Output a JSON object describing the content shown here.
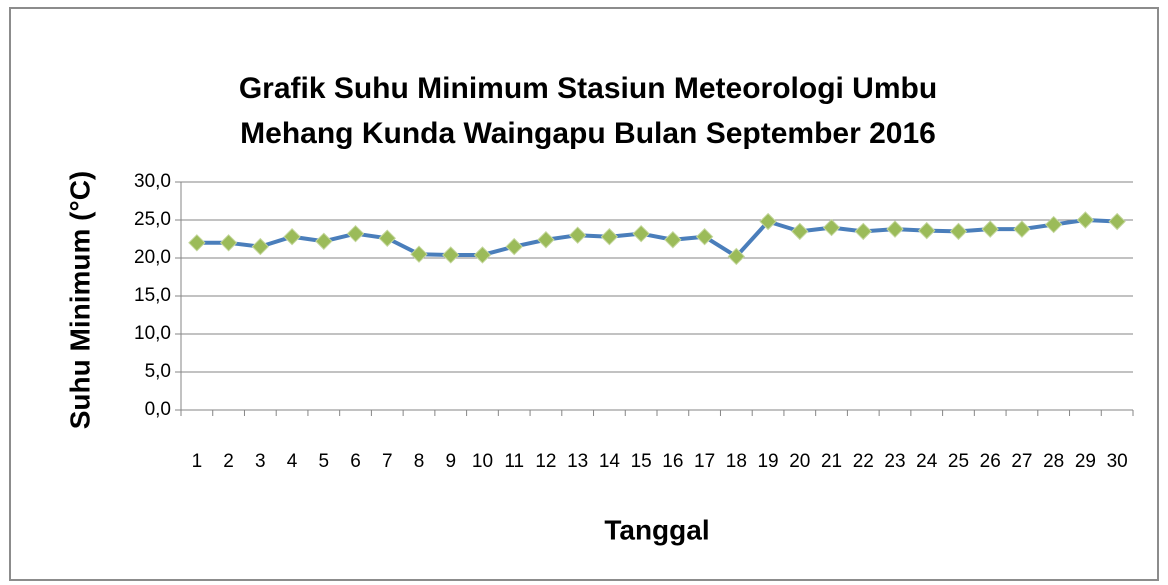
{
  "chart_data": {
    "type": "line",
    "title": [
      "Grafik Suhu Minimum Stasiun Meteorologi Umbu",
      "Mehang Kunda Waingapu Bulan September 2016"
    ],
    "x_label": "Tanggal",
    "y_label": "Suhu Minimum (°C)",
    "categories": [
      "1",
      "2",
      "3",
      "4",
      "5",
      "6",
      "7",
      "8",
      "9",
      "10",
      "11",
      "12",
      "13",
      "14",
      "15",
      "16",
      "17",
      "18",
      "19",
      "20",
      "21",
      "22",
      "23",
      "24",
      "25",
      "26",
      "27",
      "28",
      "29",
      "30"
    ],
    "series": [
      {
        "name": "Suhu Minimum",
        "color": "#4a7ebb",
        "marker_color": "#9bbb59",
        "values": [
          22.0,
          22.0,
          21.5,
          22.8,
          22.2,
          23.2,
          22.6,
          20.5,
          20.4,
          20.4,
          21.5,
          22.4,
          23.0,
          22.8,
          23.2,
          22.4,
          22.8,
          20.2,
          24.8,
          23.5,
          24.0,
          23.5,
          23.8,
          23.6,
          23.5,
          23.8,
          23.8,
          24.4,
          25.0,
          24.8
        ]
      }
    ],
    "ylim": [
      0,
      30
    ],
    "yticks": [
      {
        "value": 0,
        "label": "0,0"
      },
      {
        "value": 5,
        "label": "5,0"
      },
      {
        "value": 10,
        "label": "10,0"
      },
      {
        "value": 15,
        "label": "15,0"
      },
      {
        "value": 20,
        "label": "20,0"
      },
      {
        "value": 25,
        "label": "25,0"
      },
      {
        "value": 30,
        "label": "30,0"
      }
    ],
    "grid": true
  }
}
